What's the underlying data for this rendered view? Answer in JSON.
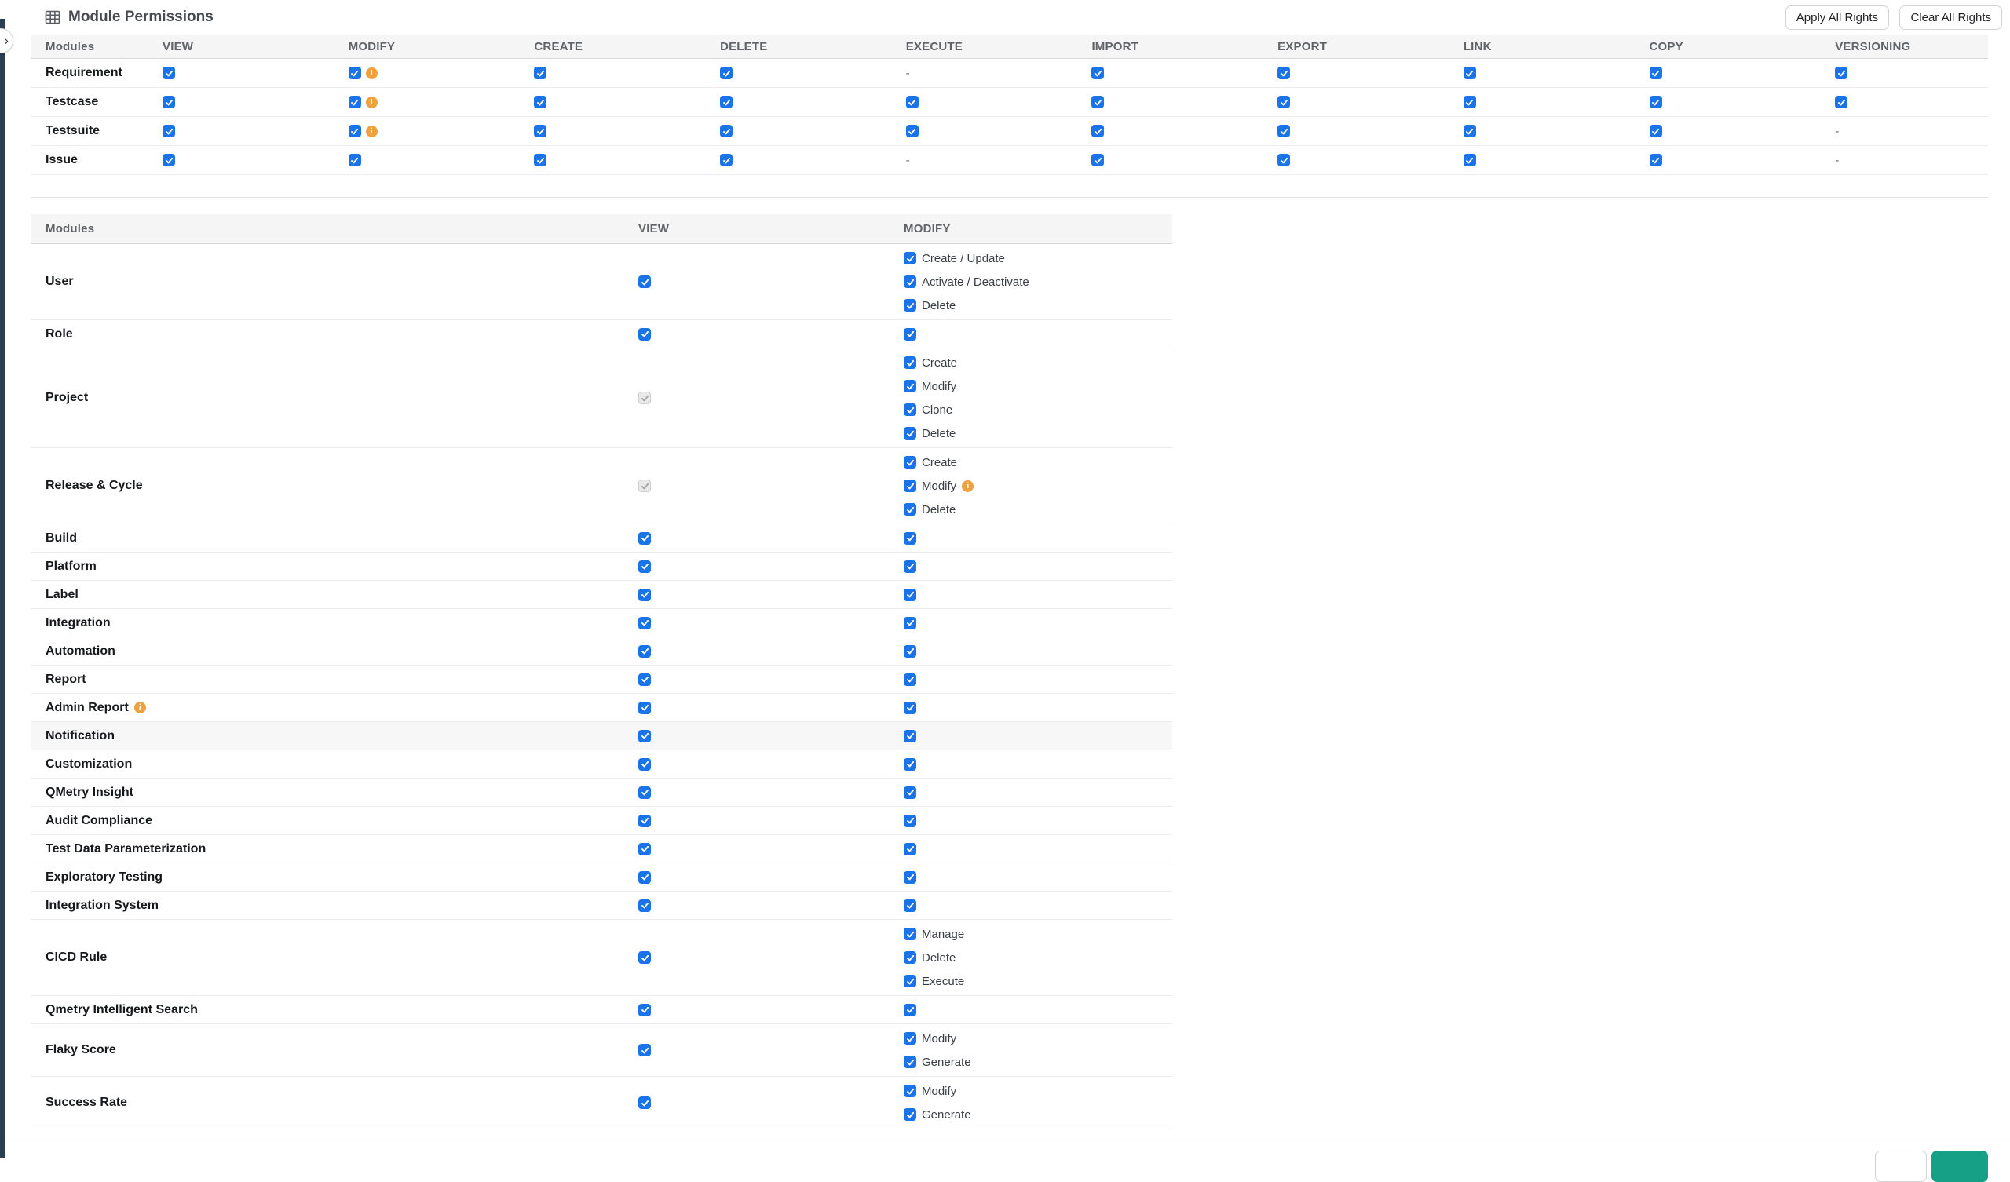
{
  "header": {
    "title": "Module Permissions",
    "apply_button": "Apply All Rights",
    "clear_button": "Clear All Rights"
  },
  "colors": {
    "checkbox_blue": "#1a73e8",
    "info_orange": "#f0a03c",
    "primary_teal": "#16a085",
    "sidebar_dark": "#2d3e50",
    "header_bg": "#f5f5f6"
  },
  "permissions_table": {
    "columns": [
      "Modules",
      "VIEW",
      "MODIFY",
      "CREATE",
      "DELETE",
      "EXECUTE",
      "IMPORT",
      "EXPORT",
      "LINK",
      "COPY",
      "VERSIONING"
    ],
    "rows": [
      {
        "module": "Requirement",
        "cells": [
          "c",
          "ci",
          "c",
          "c",
          "-",
          "c",
          "c",
          "c",
          "c",
          "c"
        ]
      },
      {
        "module": "Testcase",
        "cells": [
          "c",
          "ci",
          "c",
          "c",
          "c",
          "c",
          "c",
          "c",
          "c",
          "c"
        ]
      },
      {
        "module": "Testsuite",
        "cells": [
          "c",
          "ci",
          "c",
          "c",
          "c",
          "c",
          "c",
          "c",
          "c",
          "-"
        ]
      },
      {
        "module": "Issue",
        "cells": [
          "c",
          "c",
          "c",
          "c",
          "-",
          "c",
          "c",
          "c",
          "c",
          "-"
        ]
      }
    ]
  },
  "admin_table": {
    "columns": [
      "Modules",
      "VIEW",
      "MODIFY"
    ],
    "rows": [
      {
        "module": "User",
        "view": "c",
        "modify": [
          {
            "label": "Create / Update",
            "state": "c"
          },
          {
            "label": "Activate / Deactivate",
            "state": "c"
          },
          {
            "label": "Delete",
            "state": "c"
          }
        ]
      },
      {
        "module": "Role",
        "view": "c",
        "modify": "c"
      },
      {
        "module": "Project",
        "view": "cd",
        "modify": [
          {
            "label": "Create",
            "state": "c"
          },
          {
            "label": "Modify",
            "state": "c"
          },
          {
            "label": "Clone",
            "state": "c"
          },
          {
            "label": "Delete",
            "state": "c"
          }
        ]
      },
      {
        "module": "Release & Cycle",
        "view": "cd",
        "modify": [
          {
            "label": "Create",
            "state": "c"
          },
          {
            "label": "Modify",
            "state": "ci"
          },
          {
            "label": "Delete",
            "state": "c"
          }
        ]
      },
      {
        "module": "Build",
        "view": "c",
        "modify": "c"
      },
      {
        "module": "Platform",
        "view": "c",
        "modify": "c"
      },
      {
        "module": "Label",
        "view": "c",
        "modify": "c"
      },
      {
        "module": "Integration",
        "view": "c",
        "modify": "c"
      },
      {
        "module": "Automation",
        "view": "c",
        "modify": "c"
      },
      {
        "module": "Report",
        "view": "c",
        "modify": "c"
      },
      {
        "module": "Admin Report",
        "module_info": true,
        "view": "c",
        "modify": "c"
      },
      {
        "module": "Notification",
        "highlight": true,
        "view": "c",
        "modify": "c"
      },
      {
        "module": "Customization",
        "view": "c",
        "modify": "c"
      },
      {
        "module": "QMetry Insight",
        "view": "c",
        "modify": "c"
      },
      {
        "module": "Audit Compliance",
        "view": "c",
        "modify": "c"
      },
      {
        "module": "Test Data Parameterization",
        "view": "c",
        "modify": "c"
      },
      {
        "module": "Exploratory Testing",
        "view": "c",
        "modify": "c"
      },
      {
        "module": "Integration System",
        "view": "c",
        "modify": "c"
      },
      {
        "module": "CICD Rule",
        "view": "c",
        "modify": [
          {
            "label": "Manage",
            "state": "c"
          },
          {
            "label": "Delete",
            "state": "c"
          },
          {
            "label": "Execute",
            "state": "c"
          }
        ]
      },
      {
        "module": "Qmetry Intelligent Search",
        "view": "c",
        "modify": "c"
      },
      {
        "module": "Flaky Score",
        "view": "c",
        "modify": [
          {
            "label": "Modify",
            "state": "c"
          },
          {
            "label": "Generate",
            "state": "c"
          }
        ]
      },
      {
        "module": "Success Rate",
        "view": "c",
        "modify": [
          {
            "label": "Modify",
            "state": "c"
          },
          {
            "label": "Generate",
            "state": "c"
          }
        ]
      }
    ]
  }
}
